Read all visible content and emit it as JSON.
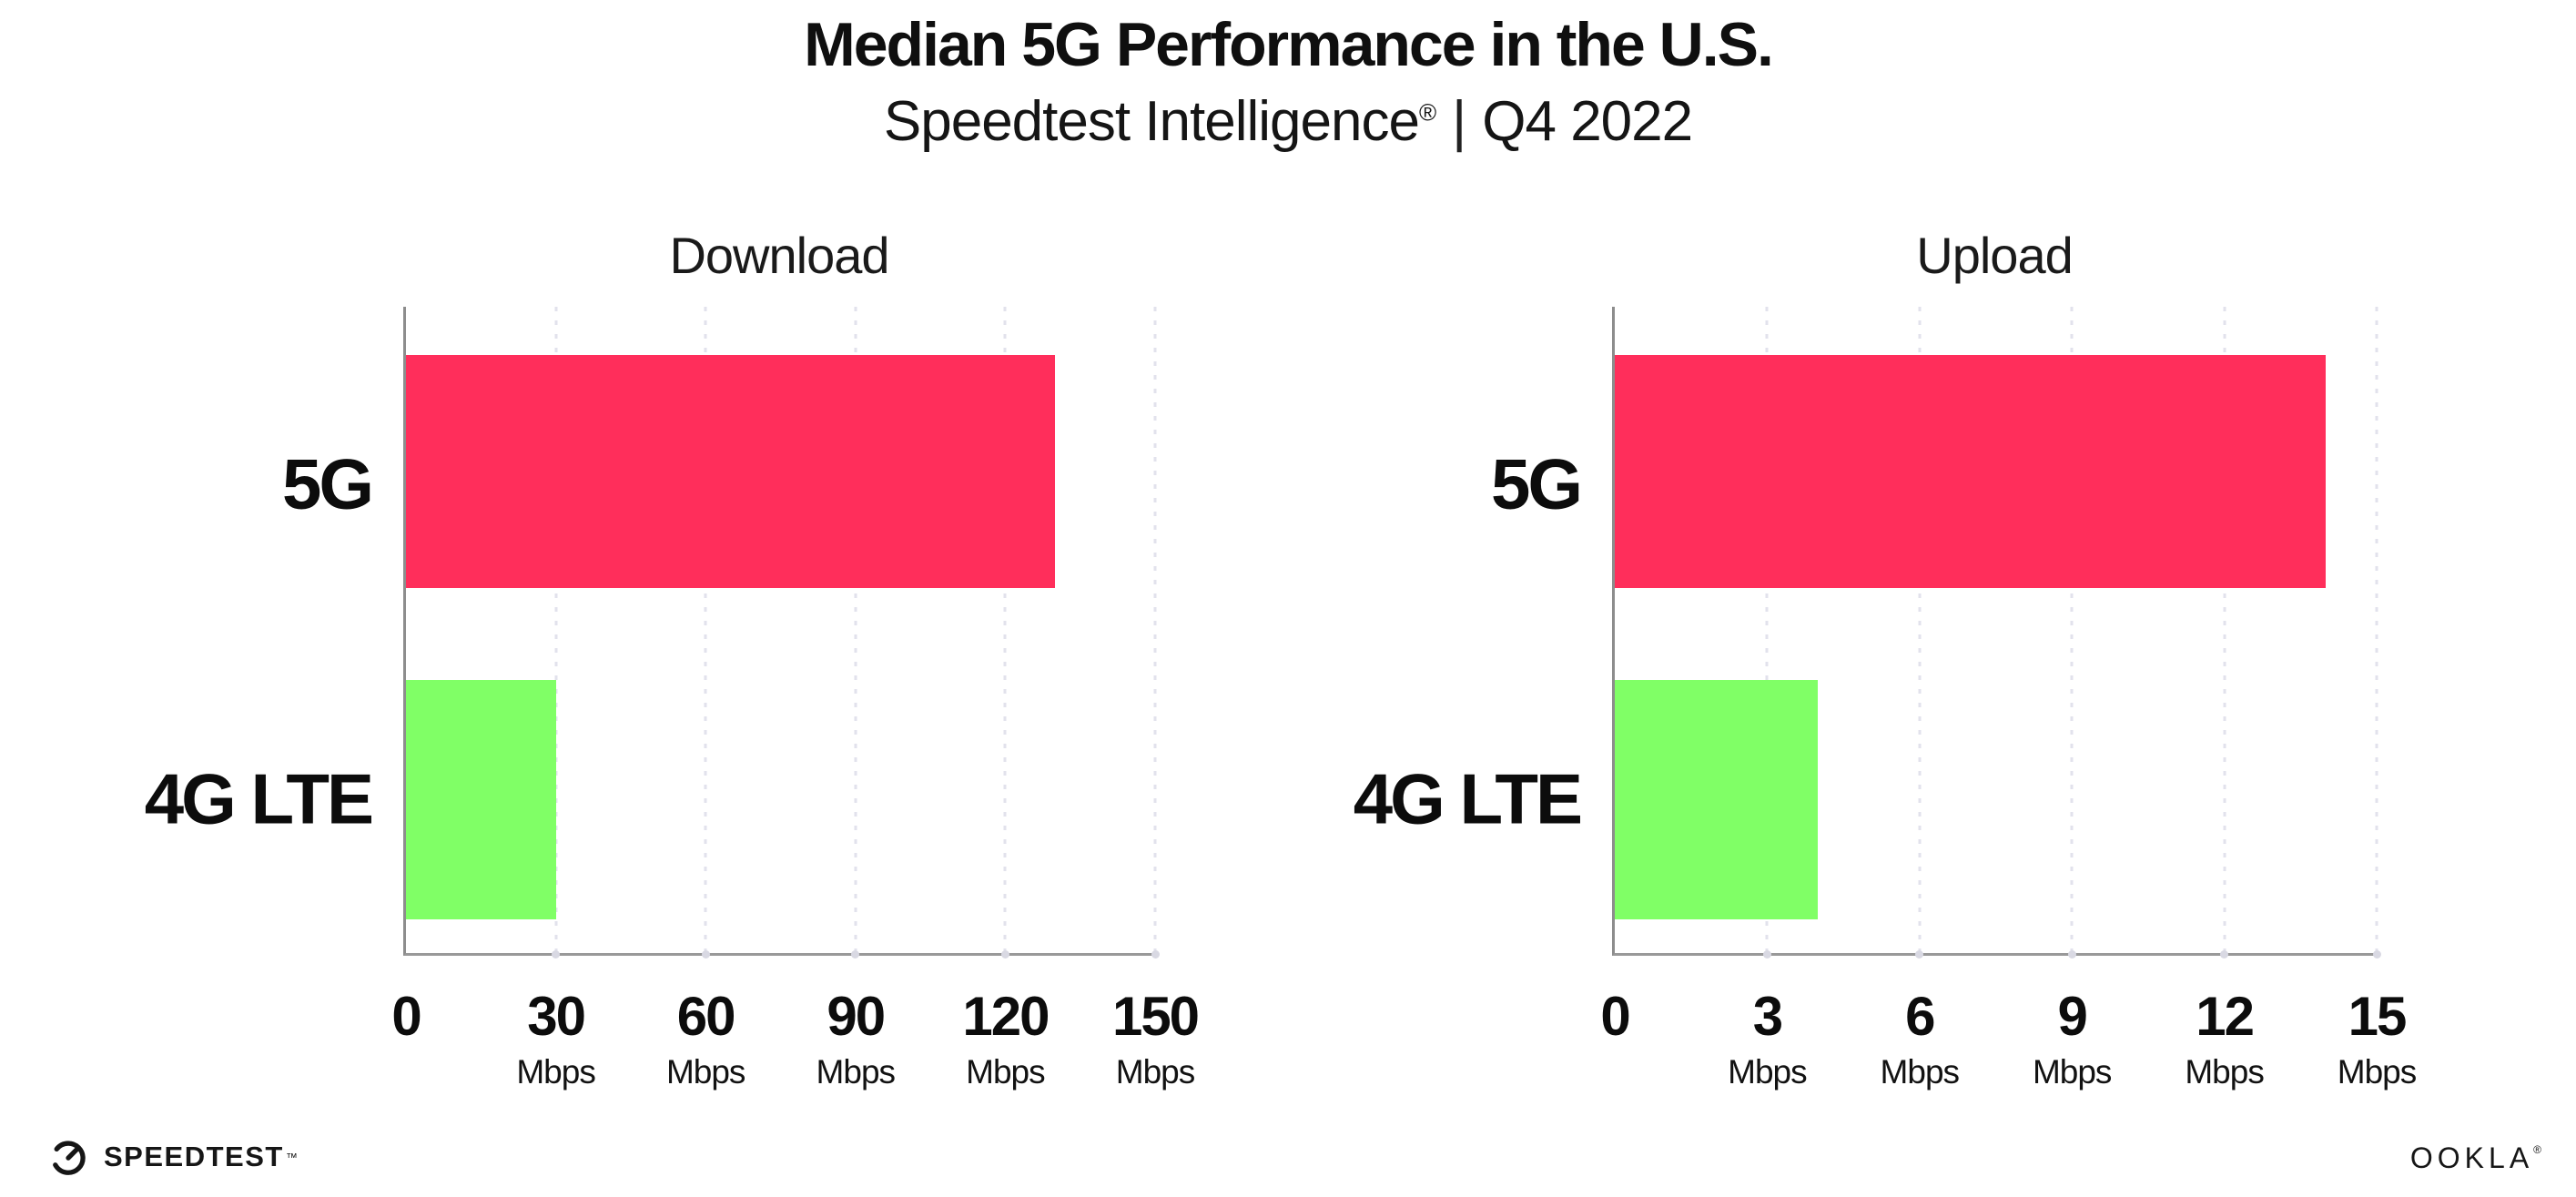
{
  "header": {
    "title": "Median 5G Performance in the U.S.",
    "subtitle": {
      "brand": "Speedtest Intelligence",
      "registered_mark": "®",
      "separator": "|",
      "period": "Q4 2022"
    }
  },
  "chart_data": [
    {
      "type": "bar",
      "orientation": "horizontal",
      "title": "Download",
      "categories": [
        "5G",
        "4G LTE"
      ],
      "values": [
        130,
        30
      ],
      "unit": "Mbps",
      "xlabel": "",
      "ylabel": "",
      "xlim": [
        0,
        150
      ],
      "xticks": [
        0,
        30,
        60,
        90,
        120,
        150
      ],
      "bar_colors": [
        "#FF2E5B",
        "#80FF66"
      ],
      "grid": "vertical-dotted",
      "legend_position": "none"
    },
    {
      "type": "bar",
      "orientation": "horizontal",
      "title": "Upload",
      "categories": [
        "5G",
        "4G LTE"
      ],
      "values": [
        14,
        4
      ],
      "unit": "Mbps",
      "xlabel": "",
      "ylabel": "",
      "xlim": [
        0,
        15
      ],
      "xticks": [
        0,
        3,
        6,
        9,
        12,
        15
      ],
      "bar_colors": [
        "#FF2E5B",
        "#80FF66"
      ],
      "grid": "vertical-dotted",
      "legend_position": "none"
    }
  ],
  "colors": {
    "bar_5g": "#FF2E5B",
    "bar_4g_lte": "#80FF66",
    "axis_line": "#8d8d8d",
    "gridline": "#e2e2ec",
    "text": "#111111"
  },
  "footer": {
    "speedtest_label": "SPEEDTEST",
    "speedtest_trademark": "™",
    "speedtest_icon": "gauge-icon",
    "ookla_label": "OOKLA",
    "ookla_registered": "®"
  }
}
